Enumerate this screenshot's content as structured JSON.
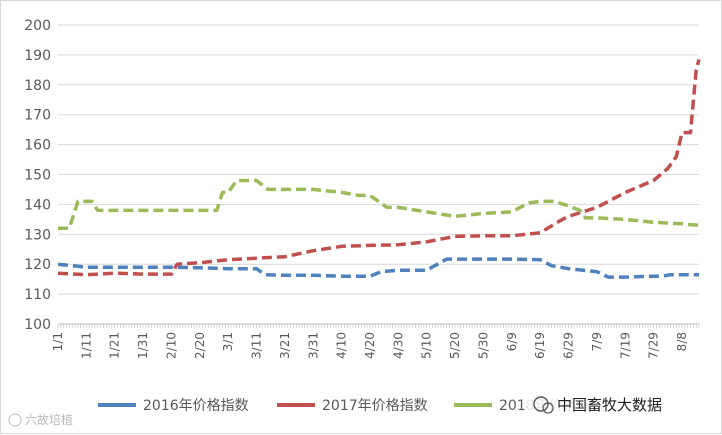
{
  "chart_data": {
    "type": "line",
    "ylim": [
      100,
      200
    ],
    "yticks": [
      100,
      110,
      120,
      130,
      140,
      150,
      160,
      170,
      180,
      190,
      200
    ],
    "x_tick_labels": [
      "1/1",
      "1/11",
      "1/21",
      "1/31",
      "2/10",
      "2/20",
      "3/1",
      "3/11",
      "3/21",
      "3/31",
      "4/10",
      "4/20",
      "4/30",
      "5/10",
      "5/20",
      "5/30",
      "6/9",
      "6/19",
      "6/29",
      "7/9",
      "7/19",
      "7/29",
      "8/8"
    ],
    "grid": "horizontal",
    "legend_position": "bottom",
    "line_style": "dashed",
    "series": [
      {
        "name": "2016年价格指数",
        "color": "#4f81bd",
        "points": [
          [
            "1/1",
            120
          ],
          [
            "1/11",
            119
          ],
          [
            "1/21",
            119
          ],
          [
            "1/31",
            119
          ],
          [
            "2/10",
            119
          ],
          [
            "2/20",
            118.8
          ],
          [
            "3/1",
            118.5
          ],
          [
            "3/11",
            118.5
          ],
          [
            "3/14",
            116.5
          ],
          [
            "3/21",
            116.3
          ],
          [
            "3/31",
            116.3
          ],
          [
            "4/10",
            116
          ],
          [
            "4/20",
            116
          ],
          [
            "4/24",
            117.5
          ],
          [
            "4/30",
            118
          ],
          [
            "5/10",
            118
          ],
          [
            "5/17",
            121.7
          ],
          [
            "5/30",
            121.7
          ],
          [
            "6/9",
            121.7
          ],
          [
            "6/19",
            121.5
          ],
          [
            "6/23",
            119.5
          ],
          [
            "6/29",
            118.5
          ],
          [
            "7/9",
            117.5
          ],
          [
            "7/13",
            115.7
          ],
          [
            "7/19",
            115.7
          ],
          [
            "7/29",
            116
          ],
          [
            "8/1",
            116
          ],
          [
            "8/4",
            116.5
          ],
          [
            "8/14",
            116.5
          ]
        ]
      },
      {
        "name": "2017年价格指数",
        "color": "#c0504d",
        "points": [
          [
            "1/1",
            117
          ],
          [
            "1/11",
            116.5
          ],
          [
            "1/21",
            117
          ],
          [
            "1/31",
            116.7
          ],
          [
            "2/10",
            116.7
          ],
          [
            "2/12",
            120
          ],
          [
            "2/20",
            120.5
          ],
          [
            "3/1",
            121.5
          ],
          [
            "3/11",
            122
          ],
          [
            "3/21",
            122.5
          ],
          [
            "3/31",
            124.5
          ],
          [
            "4/10",
            126
          ],
          [
            "4/20",
            126.3
          ],
          [
            "4/30",
            126.5
          ],
          [
            "5/10",
            127.5
          ],
          [
            "5/20",
            129.3
          ],
          [
            "5/30",
            129.5
          ],
          [
            "6/9",
            129.5
          ],
          [
            "6/19",
            130.5
          ],
          [
            "6/26",
            134.5
          ],
          [
            "6/29",
            136
          ],
          [
            "7/9",
            139
          ],
          [
            "7/19",
            144
          ],
          [
            "7/29",
            148
          ],
          [
            "8/3",
            152
          ],
          [
            "8/6",
            156
          ],
          [
            "8/8",
            164
          ],
          [
            "8/11",
            164
          ],
          [
            "8/13",
            185
          ],
          [
            "8/14",
            188.5
          ]
        ]
      },
      {
        "name": "2018年价格指数",
        "color": "#9bbb59",
        "points": [
          [
            "1/1",
            132
          ],
          [
            "1/5",
            132
          ],
          [
            "1/8",
            141
          ],
          [
            "1/13",
            141
          ],
          [
            "1/15",
            138
          ],
          [
            "1/21",
            138
          ],
          [
            "1/31",
            138
          ],
          [
            "2/10",
            138
          ],
          [
            "2/20",
            138
          ],
          [
            "2/26",
            138
          ],
          [
            "2/28",
            144
          ],
          [
            "3/1",
            144
          ],
          [
            "3/4",
            148
          ],
          [
            "3/11",
            148
          ],
          [
            "3/15",
            145
          ],
          [
            "3/21",
            145
          ],
          [
            "3/31",
            145
          ],
          [
            "4/10",
            144
          ],
          [
            "4/16",
            143
          ],
          [
            "4/20",
            143
          ],
          [
            "4/26",
            139
          ],
          [
            "4/30",
            139
          ],
          [
            "5/10",
            137.5
          ],
          [
            "5/20",
            136
          ],
          [
            "5/30",
            137
          ],
          [
            "6/9",
            137.5
          ],
          [
            "6/15",
            140.5
          ],
          [
            "6/19",
            141
          ],
          [
            "6/24",
            141
          ],
          [
            "6/29",
            139.5
          ],
          [
            "7/3",
            138
          ],
          [
            "7/5",
            135.5
          ],
          [
            "7/9",
            135.5
          ],
          [
            "7/19",
            135
          ],
          [
            "7/29",
            134
          ],
          [
            "8/8",
            133.5
          ],
          [
            "8/14",
            133
          ]
        ]
      }
    ]
  },
  "legend_labels": [
    "2016年价格指数",
    "2017年价格指数",
    "2018年价格指数"
  ],
  "watermark": {
    "right_text": "中国畜牧大数据",
    "left_text": "六故培植"
  }
}
